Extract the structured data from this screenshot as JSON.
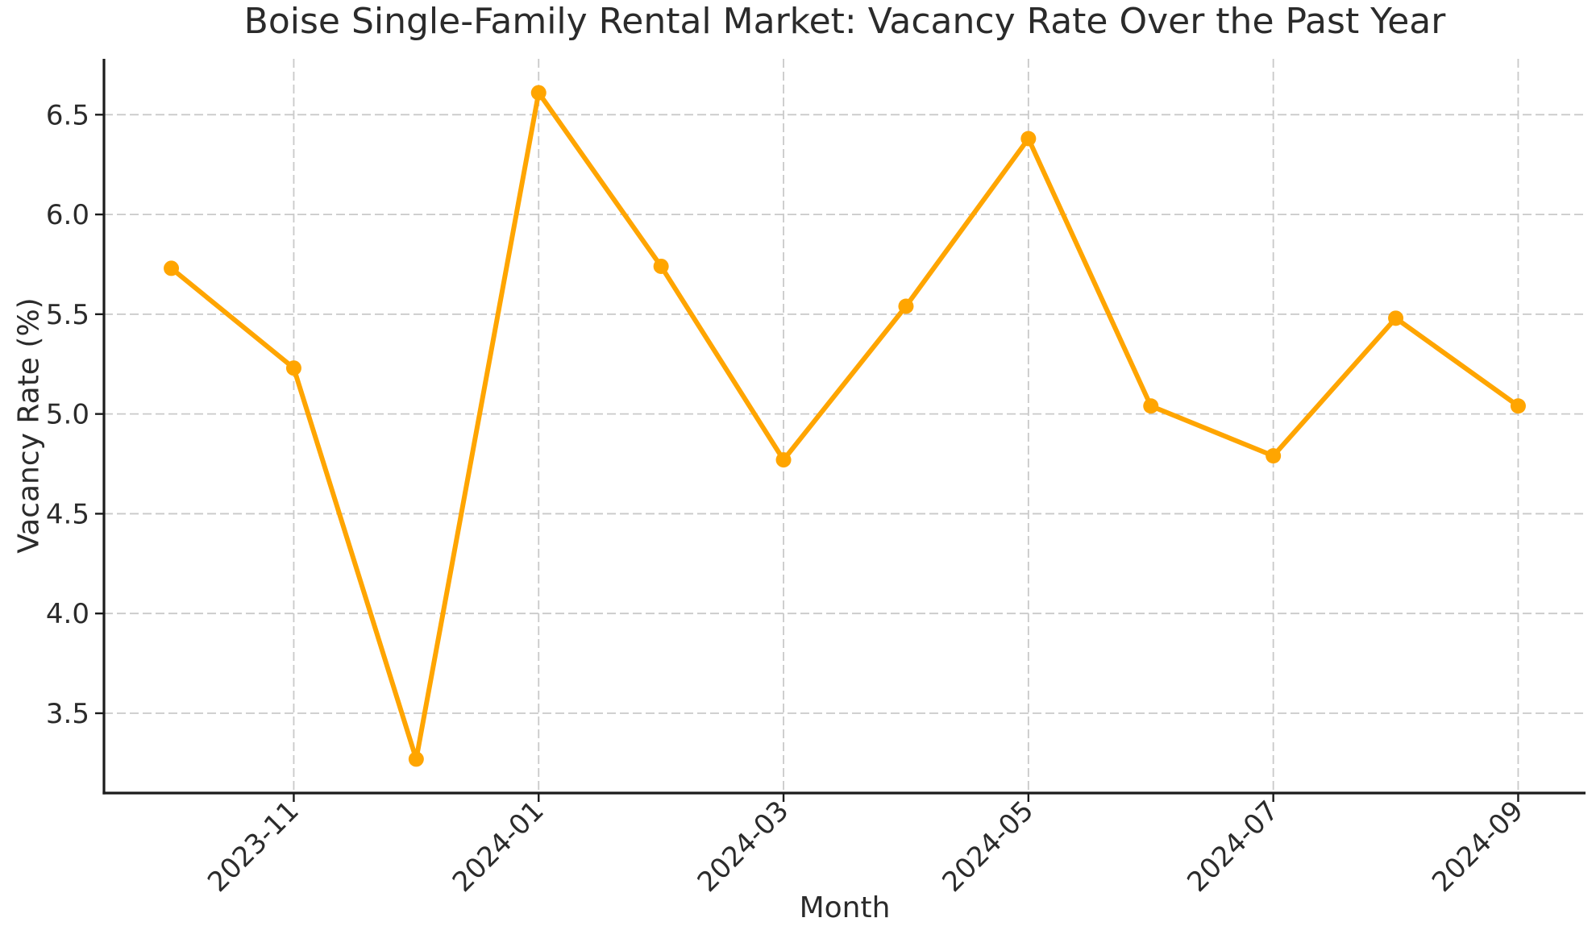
{
  "figure": {
    "background": "#ffffff"
  },
  "chart_data": {
    "type": "line",
    "title": "Boise Single-Family Rental Market: Vacancy Rate Over the Past Year",
    "xlabel": "Month",
    "ylabel": "Vacancy Rate (%)",
    "categories": [
      "2023-10",
      "2023-11",
      "2023-12",
      "2024-01",
      "2024-02",
      "2024-03",
      "2024-04",
      "2024-05",
      "2024-06",
      "2024-07",
      "2024-08",
      "2024-09"
    ],
    "series": [
      {
        "name": "Vacancy Rate (%)",
        "values": [
          5.73,
          5.23,
          3.27,
          6.61,
          5.74,
          4.77,
          5.54,
          6.38,
          5.04,
          4.79,
          5.48,
          5.04
        ]
      }
    ],
    "x_ticks": {
      "indices": [
        1,
        3,
        5,
        7,
        9,
        11
      ],
      "labels": [
        "2023-11",
        "2024-01",
        "2024-03",
        "2024-05",
        "2024-07",
        "2024-09"
      ],
      "rotation_deg": 45
    },
    "y_ticks": [
      3.5,
      4.0,
      4.5,
      5.0,
      5.5,
      6.0,
      6.5
    ],
    "ylim": [
      3.1,
      6.78
    ],
    "grid": true,
    "grid_style": "dashed",
    "legend_position": "none",
    "marker": "circle",
    "colors": {
      "line": "#FFA500",
      "marker": "#FFA500",
      "grid": "#c9c9c9",
      "axis": "#1b1b1b",
      "text": "#2b2b2b"
    }
  }
}
